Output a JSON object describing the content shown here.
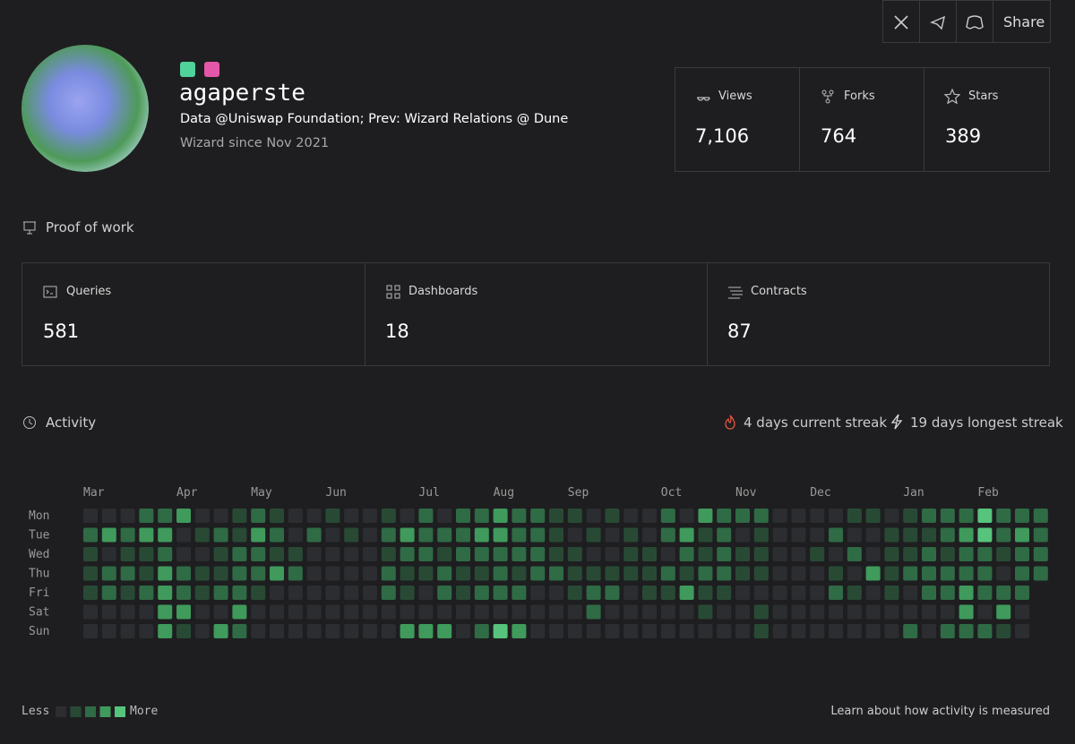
{
  "share_bar": {
    "share": "Share"
  },
  "profile": {
    "name": "agaperste",
    "bio": "Data @Uniswap Foundation; Prev: Wizard Relations @ Dune",
    "since": "Wizard since Nov 2021"
  },
  "stats": [
    {
      "label": "Views",
      "value": "7,106"
    },
    {
      "label": "Forks",
      "value": "764"
    },
    {
      "label": "Stars",
      "value": "389"
    }
  ],
  "proof_of_work": {
    "title": "Proof of work",
    "items": [
      {
        "label": "Queries",
        "value": "581"
      },
      {
        "label": "Dashboards",
        "value": "18"
      },
      {
        "label": "Contracts",
        "value": "87"
      }
    ]
  },
  "activity": {
    "title": "Activity",
    "current_streak": "4 days current streak",
    "longest_streak": "19 days longest streak",
    "months": [
      "Mar",
      "Apr",
      "May",
      "Jun",
      "Jul",
      "Aug",
      "Sep",
      "Oct",
      "Nov",
      "Dec",
      "Jan",
      "Feb"
    ],
    "days": [
      {
        "label": "Mon",
        "values": [
          0,
          0,
          0,
          2,
          2,
          3,
          0,
          0,
          1,
          2,
          1,
          0,
          0,
          1,
          0,
          0,
          1,
          0,
          2,
          0,
          2,
          2,
          3,
          2,
          2,
          1,
          1,
          0,
          1,
          0,
          0,
          2,
          0,
          3,
          2,
          2,
          2,
          0,
          0,
          0,
          0,
          1,
          1,
          0,
          1,
          2,
          2,
          2,
          4,
          2,
          2,
          2
        ]
      },
      {
        "label": "Tue",
        "values": [
          2,
          3,
          2,
          3,
          3,
          0,
          1,
          2,
          1,
          3,
          2,
          0,
          2,
          0,
          1,
          0,
          2,
          3,
          2,
          2,
          2,
          3,
          3,
          2,
          2,
          1,
          0,
          1,
          0,
          1,
          0,
          2,
          3,
          1,
          2,
          0,
          1,
          0,
          0,
          0,
          2,
          0,
          0,
          1,
          1,
          1,
          2,
          3,
          4,
          2,
          3,
          2
        ]
      },
      {
        "label": "Wed",
        "values": [
          1,
          0,
          1,
          1,
          2,
          0,
          0,
          1,
          2,
          2,
          1,
          1,
          0,
          0,
          0,
          0,
          1,
          2,
          2,
          1,
          2,
          2,
          2,
          2,
          2,
          1,
          1,
          0,
          0,
          1,
          1,
          0,
          2,
          1,
          2,
          1,
          1,
          0,
          0,
          1,
          0,
          2,
          0,
          1,
          1,
          2,
          1,
          2,
          2,
          1,
          2,
          2
        ]
      },
      {
        "label": "Thu",
        "values": [
          1,
          2,
          2,
          1,
          3,
          2,
          1,
          1,
          2,
          2,
          3,
          2,
          0,
          0,
          0,
          0,
          2,
          1,
          1,
          2,
          1,
          1,
          2,
          1,
          2,
          2,
          1,
          1,
          1,
          1,
          1,
          2,
          1,
          2,
          2,
          1,
          1,
          0,
          0,
          0,
          1,
          0,
          3,
          1,
          2,
          2,
          2,
          2,
          2,
          0,
          2,
          2
        ]
      },
      {
        "label": "Fri",
        "values": [
          1,
          2,
          1,
          2,
          3,
          2,
          1,
          2,
          2,
          1,
          0,
          0,
          0,
          0,
          0,
          0,
          2,
          1,
          0,
          2,
          1,
          2,
          2,
          2,
          0,
          0,
          1,
          2,
          2,
          0,
          1,
          1,
          3,
          1,
          1,
          0,
          0,
          0,
          0,
          0,
          2,
          1,
          0,
          1,
          0,
          2,
          2,
          3,
          2,
          2,
          2,
          null
        ]
      },
      {
        "label": "Sat",
        "values": [
          0,
          0,
          0,
          0,
          3,
          3,
          0,
          0,
          3,
          0,
          0,
          0,
          0,
          0,
          0,
          0,
          0,
          0,
          0,
          0,
          0,
          0,
          0,
          0,
          0,
          0,
          0,
          2,
          0,
          0,
          0,
          0,
          0,
          1,
          0,
          0,
          1,
          0,
          0,
          0,
          0,
          0,
          0,
          0,
          0,
          0,
          0,
          3,
          0,
          3,
          0,
          null
        ]
      },
      {
        "label": "Sun",
        "values": [
          0,
          0,
          0,
          0,
          3,
          1,
          0,
          3,
          2,
          0,
          0,
          0,
          0,
          0,
          0,
          0,
          0,
          3,
          3,
          3,
          0,
          2,
          4,
          3,
          0,
          0,
          0,
          0,
          0,
          0,
          0,
          0,
          0,
          0,
          0,
          0,
          1,
          0,
          0,
          0,
          0,
          0,
          0,
          0,
          2,
          0,
          2,
          2,
          2,
          1,
          0,
          null
        ]
      }
    ],
    "legend": {
      "less": "Less",
      "more": "More"
    },
    "learn_more": "Learn about how activity is measured"
  }
}
